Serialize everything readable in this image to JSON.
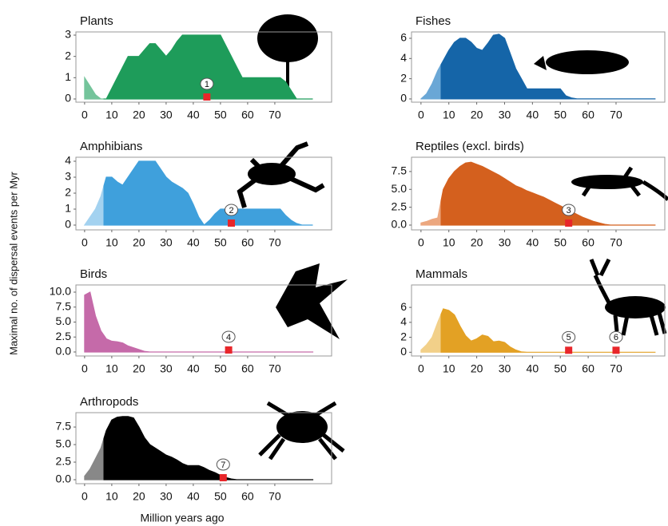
{
  "y_axis_label": "Maximal no. of dispersal events per Myr",
  "x_axis_label": "Million years ago",
  "chart_data": [
    {
      "type": "area",
      "title": "Plants",
      "color": "#1e9c5a",
      "light_color": "#74c49b",
      "split_x": 7,
      "x": [
        0,
        2,
        4,
        6,
        8,
        10,
        12,
        14,
        16,
        18,
        20,
        22,
        24,
        26,
        28,
        30,
        32,
        34,
        36,
        38,
        40,
        42,
        44,
        46,
        48,
        50,
        52,
        54,
        56,
        58,
        60,
        62,
        64,
        66,
        68,
        70,
        72,
        74,
        76,
        78,
        80,
        82,
        84
      ],
      "values": [
        1,
        0.6,
        0.2,
        0,
        0,
        0.5,
        1,
        1.5,
        2,
        2,
        2,
        2.3,
        2.6,
        2.6,
        2.3,
        2,
        2.3,
        2.7,
        3,
        3,
        3,
        3,
        3,
        3,
        3,
        3,
        2.5,
        2,
        1.5,
        1,
        1,
        1,
        1,
        1,
        1,
        1,
        1,
        0.8,
        0.4,
        0,
        0,
        0,
        0
      ],
      "xlim": [
        -3.2,
        90.9
      ],
      "xticks": [
        0,
        10,
        20,
        30,
        40,
        50,
        60,
        70
      ],
      "ylim": [
        -0.15,
        3.15
      ],
      "yticks": [
        0,
        1,
        2,
        3
      ],
      "events": [
        {
          "label": "1",
          "x": 45
        }
      ]
    },
    {
      "type": "area",
      "title": "Fishes",
      "color": "#1565a8",
      "light_color": "#6aa7d6",
      "split_x": 7,
      "x": [
        0,
        2,
        4,
        6,
        8,
        10,
        12,
        14,
        16,
        18,
        20,
        22,
        24,
        26,
        28,
        30,
        32,
        34,
        36,
        38,
        40,
        42,
        44,
        46,
        48,
        50,
        52,
        54,
        56,
        58,
        60,
        62,
        64,
        66,
        68,
        70,
        72,
        74,
        76,
        78,
        80,
        82,
        84
      ],
      "values": [
        0,
        0.5,
        1.5,
        2.8,
        3.8,
        4.8,
        5.6,
        6,
        6,
        5.6,
        5,
        4.8,
        5.5,
        6.3,
        6.4,
        6,
        4.5,
        3,
        2,
        1,
        1,
        1,
        1,
        1,
        1,
        1,
        0.3,
        0.1,
        0,
        0,
        0,
        0,
        0,
        0,
        0,
        0,
        0,
        0,
        0,
        0,
        0,
        0,
        0
      ],
      "xlim": [
        -3.4,
        87.5
      ],
      "xticks": [
        0,
        10,
        20,
        30,
        40,
        50,
        60,
        70
      ],
      "ylim": [
        -0.32,
        6.63
      ],
      "yticks": [
        0,
        2,
        4,
        6
      ],
      "events": []
    },
    {
      "type": "area",
      "title": "Amphibians",
      "color": "#3fa0dc",
      "light_color": "#a3d2f0",
      "split_x": 7,
      "x": [
        0,
        2,
        4,
        6,
        8,
        10,
        12,
        14,
        16,
        18,
        20,
        22,
        24,
        26,
        28,
        30,
        32,
        34,
        36,
        38,
        40,
        42,
        44,
        46,
        48,
        50,
        52,
        54,
        56,
        58,
        60,
        62,
        64,
        66,
        68,
        70,
        72,
        74,
        76,
        78,
        80,
        82,
        84
      ],
      "values": [
        0,
        0.5,
        1,
        1.8,
        3,
        3,
        2.7,
        2.5,
        3,
        3.5,
        4,
        4,
        4,
        4,
        3.5,
        3,
        2.7,
        2.5,
        2.3,
        2,
        1.3,
        0.5,
        0,
        0.3,
        0.7,
        1,
        1,
        1,
        1,
        1,
        1,
        1,
        1,
        1,
        1,
        1,
        1,
        0.6,
        0.3,
        0.1,
        0,
        0,
        0
      ],
      "xlim": [
        -3.2,
        90.9
      ],
      "xticks": [
        0,
        10,
        20,
        30,
        40,
        50,
        60,
        70
      ],
      "ylim": [
        -0.3,
        4.25
      ],
      "yticks": [
        0,
        1,
        2,
        3,
        4
      ],
      "events": [
        {
          "label": "2",
          "x": 54
        }
      ]
    },
    {
      "type": "area",
      "title": "Reptiles (excl. birds)",
      "color": "#d4601e",
      "light_color": "#eca77f",
      "split_x": 7,
      "x": [
        0,
        2,
        4,
        6,
        8,
        10,
        12,
        14,
        16,
        18,
        20,
        22,
        24,
        26,
        28,
        30,
        32,
        34,
        36,
        38,
        40,
        42,
        44,
        46,
        48,
        50,
        52,
        54,
        56,
        58,
        60,
        62,
        64,
        66,
        68,
        70,
        72,
        74,
        76,
        78,
        80,
        82,
        84
      ],
      "values": [
        0.3,
        0.5,
        0.8,
        1,
        5,
        6.5,
        7.5,
        8.2,
        8.7,
        8.8,
        8.5,
        8.2,
        7.8,
        7.4,
        7,
        6.5,
        6,
        5.5,
        5.2,
        4.8,
        4.5,
        4.2,
        3.9,
        3.5,
        3.1,
        2.7,
        2.3,
        1.9,
        1.5,
        1.1,
        0.8,
        0.5,
        0.3,
        0.1,
        0,
        0,
        0,
        0,
        0,
        0,
        0,
        0,
        0
      ],
      "xlim": [
        -3.4,
        87.5
      ],
      "xticks": [
        0,
        10,
        20,
        30,
        40,
        50,
        60,
        70
      ],
      "ylim": [
        -0.67,
        9.5
      ],
      "yticks": [
        {
          "value": 0,
          "label": "0.0"
        },
        2.5,
        {
          "value": 5,
          "label": "5.0"
        },
        7.5
      ],
      "events": [
        {
          "label": "3",
          "x": 53
        }
      ]
    },
    {
      "type": "area",
      "title": "Birds",
      "color": "#c56aa9",
      "x": [
        0,
        2,
        4,
        6,
        8,
        10,
        12,
        14,
        16,
        18,
        20,
        22,
        24,
        26,
        28,
        30,
        32,
        34,
        36,
        38,
        40,
        42,
        44,
        46,
        48,
        50,
        52,
        54,
        56,
        58,
        60,
        62,
        64,
        66,
        68,
        70,
        72,
        74,
        76,
        78,
        80,
        82,
        84
      ],
      "values": [
        9.5,
        10,
        6,
        3.5,
        2.2,
        1.8,
        1.7,
        1.5,
        1,
        0.7,
        0.4,
        0.1,
        0,
        0,
        0,
        0,
        0,
        0,
        0,
        0,
        0,
        0,
        0,
        0,
        0,
        0,
        0,
        0,
        0,
        0,
        0,
        0,
        0,
        0,
        0,
        0,
        0,
        0,
        0,
        0,
        0,
        0,
        0
      ],
      "xlim": [
        -3.2,
        90.9
      ],
      "xticks": [
        0,
        10,
        20,
        30,
        40,
        50,
        60,
        70
      ],
      "ylim": [
        -0.67,
        11.2
      ],
      "yticks": [
        {
          "value": 0,
          "label": "0.0"
        },
        2.5,
        {
          "value": 5,
          "label": "5.0"
        },
        7.5,
        {
          "value": 10,
          "label": "10.0"
        }
      ],
      "events": [
        {
          "label": "4",
          "x": 53
        }
      ]
    },
    {
      "type": "area",
      "title": "Mammals",
      "color": "#e3a124",
      "light_color": "#f2d089",
      "split_x": 7,
      "x": [
        0,
        2,
        4,
        6,
        8,
        10,
        12,
        14,
        16,
        18,
        20,
        22,
        24,
        26,
        28,
        30,
        32,
        34,
        36,
        38,
        40,
        42,
        44,
        46,
        48,
        50,
        52,
        54,
        56,
        58,
        60,
        62,
        64,
        66,
        68,
        70,
        72,
        74,
        76,
        78,
        80,
        82,
        84
      ],
      "values": [
        0.3,
        1,
        2,
        4,
        5.8,
        5.6,
        5,
        3.5,
        2.2,
        1.5,
        1.8,
        2.3,
        2.1,
        1.4,
        1.5,
        1.3,
        0.7,
        0.3,
        0.05,
        0,
        0,
        0,
        0,
        0,
        0,
        0,
        0,
        0,
        0,
        0,
        0,
        0,
        0,
        0,
        0,
        0,
        0,
        0,
        0,
        0,
        0,
        0,
        0
      ],
      "xlim": [
        -3.4,
        87.5
      ],
      "xticks": [
        0,
        10,
        20,
        30,
        40,
        50,
        60,
        70
      ],
      "ylim": [
        -0.5,
        9.0
      ],
      "yticks": [
        0,
        2,
        4,
        6
      ],
      "events": [
        {
          "label": "5",
          "x": 53
        },
        {
          "label": "6",
          "x": 70
        }
      ]
    },
    {
      "type": "area",
      "title": "Arthropods",
      "color": "#000000",
      "light_color": "#888888",
      "split_x": 7,
      "x": [
        0,
        2,
        4,
        6,
        8,
        10,
        12,
        14,
        16,
        18,
        20,
        22,
        24,
        26,
        28,
        30,
        32,
        34,
        36,
        38,
        40,
        42,
        44,
        46,
        48,
        50,
        52,
        54,
        56,
        58,
        60,
        62,
        64,
        66,
        68,
        70,
        72,
        74,
        76,
        78,
        80,
        82,
        84
      ],
      "values": [
        0.5,
        1.5,
        3,
        4.5,
        7,
        8.5,
        8.9,
        9,
        9,
        8.8,
        7.5,
        6,
        5,
        4.5,
        4,
        3.5,
        3.2,
        2.8,
        2.3,
        2,
        2,
        2,
        1.7,
        1.3,
        1,
        0.6,
        0.3,
        0.1,
        0,
        0,
        0,
        0,
        0,
        0,
        0,
        0,
        0,
        0,
        0,
        0,
        0,
        0,
        0
      ],
      "xlim": [
        -3.2,
        90.9
      ],
      "xticks": [
        0,
        10,
        20,
        30,
        40,
        50,
        60,
        70
      ],
      "ylim": [
        -0.57,
        9.55
      ],
      "yticks": [
        {
          "value": 0,
          "label": "0.0"
        },
        2.5,
        {
          "value": 5,
          "label": "5.0"
        },
        7.5
      ],
      "events": [
        {
          "label": "7",
          "x": 51
        }
      ]
    }
  ]
}
